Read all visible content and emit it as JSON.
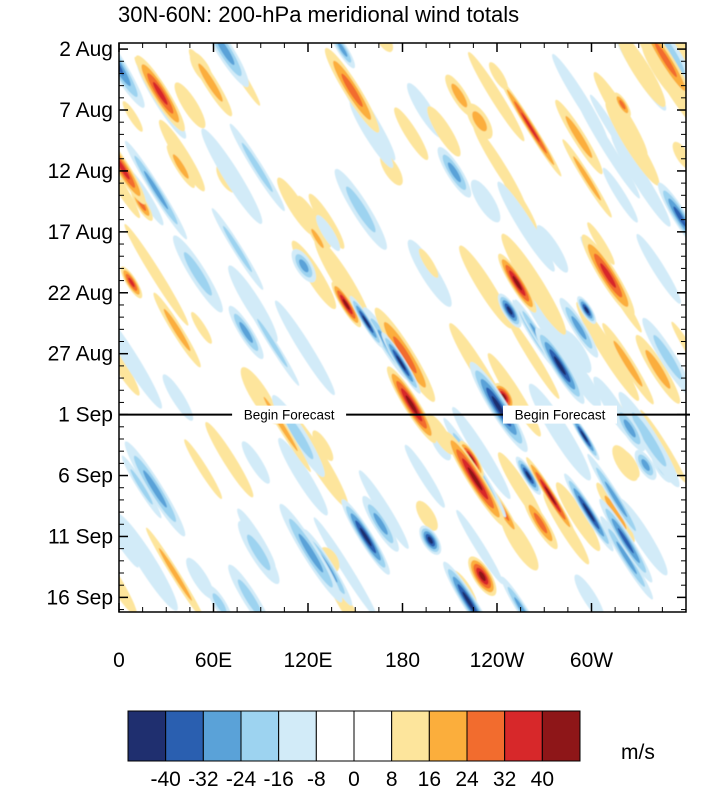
{
  "chart_data": {
    "type": "heatmap",
    "title": "30N-60N: 200-hPa meridional wind totals",
    "xlabel": "",
    "ylabel": "",
    "x_ticks": [
      "0",
      "60E",
      "120E",
      "180",
      "120W",
      "60W"
    ],
    "x_tick_longitudes": [
      0,
      60,
      120,
      180,
      240,
      300
    ],
    "xlim": [
      0,
      360
    ],
    "y_ticks": [
      "2 Aug",
      "7 Aug",
      "12 Aug",
      "17 Aug",
      "22 Aug",
      "27 Aug",
      "1 Sep",
      "6 Sep",
      "11 Sep",
      "16 Sep"
    ],
    "y_tick_day_offsets": [
      0,
      5,
      10,
      15,
      20,
      25,
      30,
      35,
      40,
      45
    ],
    "ylim_day_offsets": [
      -0.5,
      46.2
    ],
    "forecast_line": {
      "date": "1 Sep",
      "day_offset": 30,
      "labels": [
        {
          "text": "Begin Forecast",
          "longitude": 108
        },
        {
          "text": "Begin Forecast",
          "longitude": 280
        }
      ]
    },
    "colorbar": {
      "units": "m/s",
      "tick_labels": [
        "-40",
        "-32",
        "-24",
        "-16",
        "-8",
        "0",
        "8",
        "16",
        "24",
        "32",
        "40"
      ],
      "colors": [
        "#1f2f6f",
        "#2a5fb0",
        "#5aa2d8",
        "#9dd3f0",
        "#d2ebf8",
        "#ffffff",
        "#ffffff",
        "#fde59c",
        "#fbae3c",
        "#f26c2e",
        "#d7282a",
        "#8e1618"
      ]
    }
  }
}
